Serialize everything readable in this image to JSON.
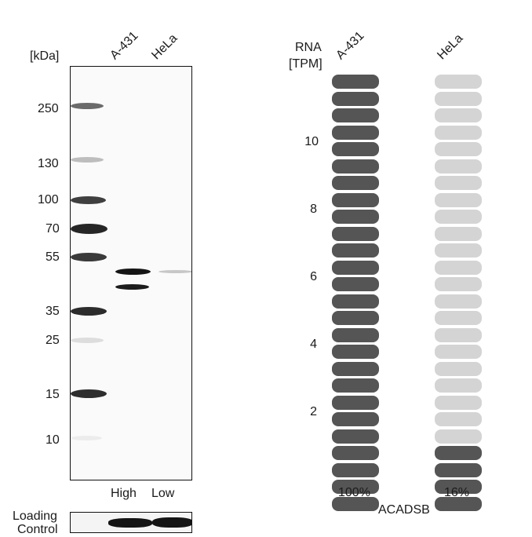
{
  "western_blot": {
    "unit_label": "[kDa]",
    "lanes": [
      "A-431",
      "HeLa"
    ],
    "markers": [
      "250",
      "130",
      "100",
      "70",
      "55",
      "35",
      "25",
      "15",
      "10"
    ],
    "expression_labels": [
      "High",
      "Low"
    ],
    "loading_control_label": [
      "Loading",
      "Control"
    ]
  },
  "rna": {
    "axis_label": [
      "RNA",
      "[TPM]"
    ],
    "cell_lines": [
      "A-431",
      "HeLa"
    ],
    "y_ticks": [
      "10",
      "8",
      "6",
      "4",
      "2"
    ],
    "percentages": [
      "100%",
      "16%"
    ],
    "gene": "ACADSB",
    "colors": {
      "filled": "#555555",
      "empty": "#d4d4d4"
    }
  },
  "chart_data": {
    "type": "bar",
    "categories": [
      "A-431",
      "HeLa"
    ],
    "values": [
      26,
      4
    ],
    "value_unit": "segments of 26",
    "percent_labels": [
      "100%",
      "16%"
    ],
    "title": "",
    "xlabel": "ACADSB",
    "ylabel": "RNA [TPM]",
    "y_ticks": [
      2,
      4,
      6,
      8,
      10
    ]
  }
}
